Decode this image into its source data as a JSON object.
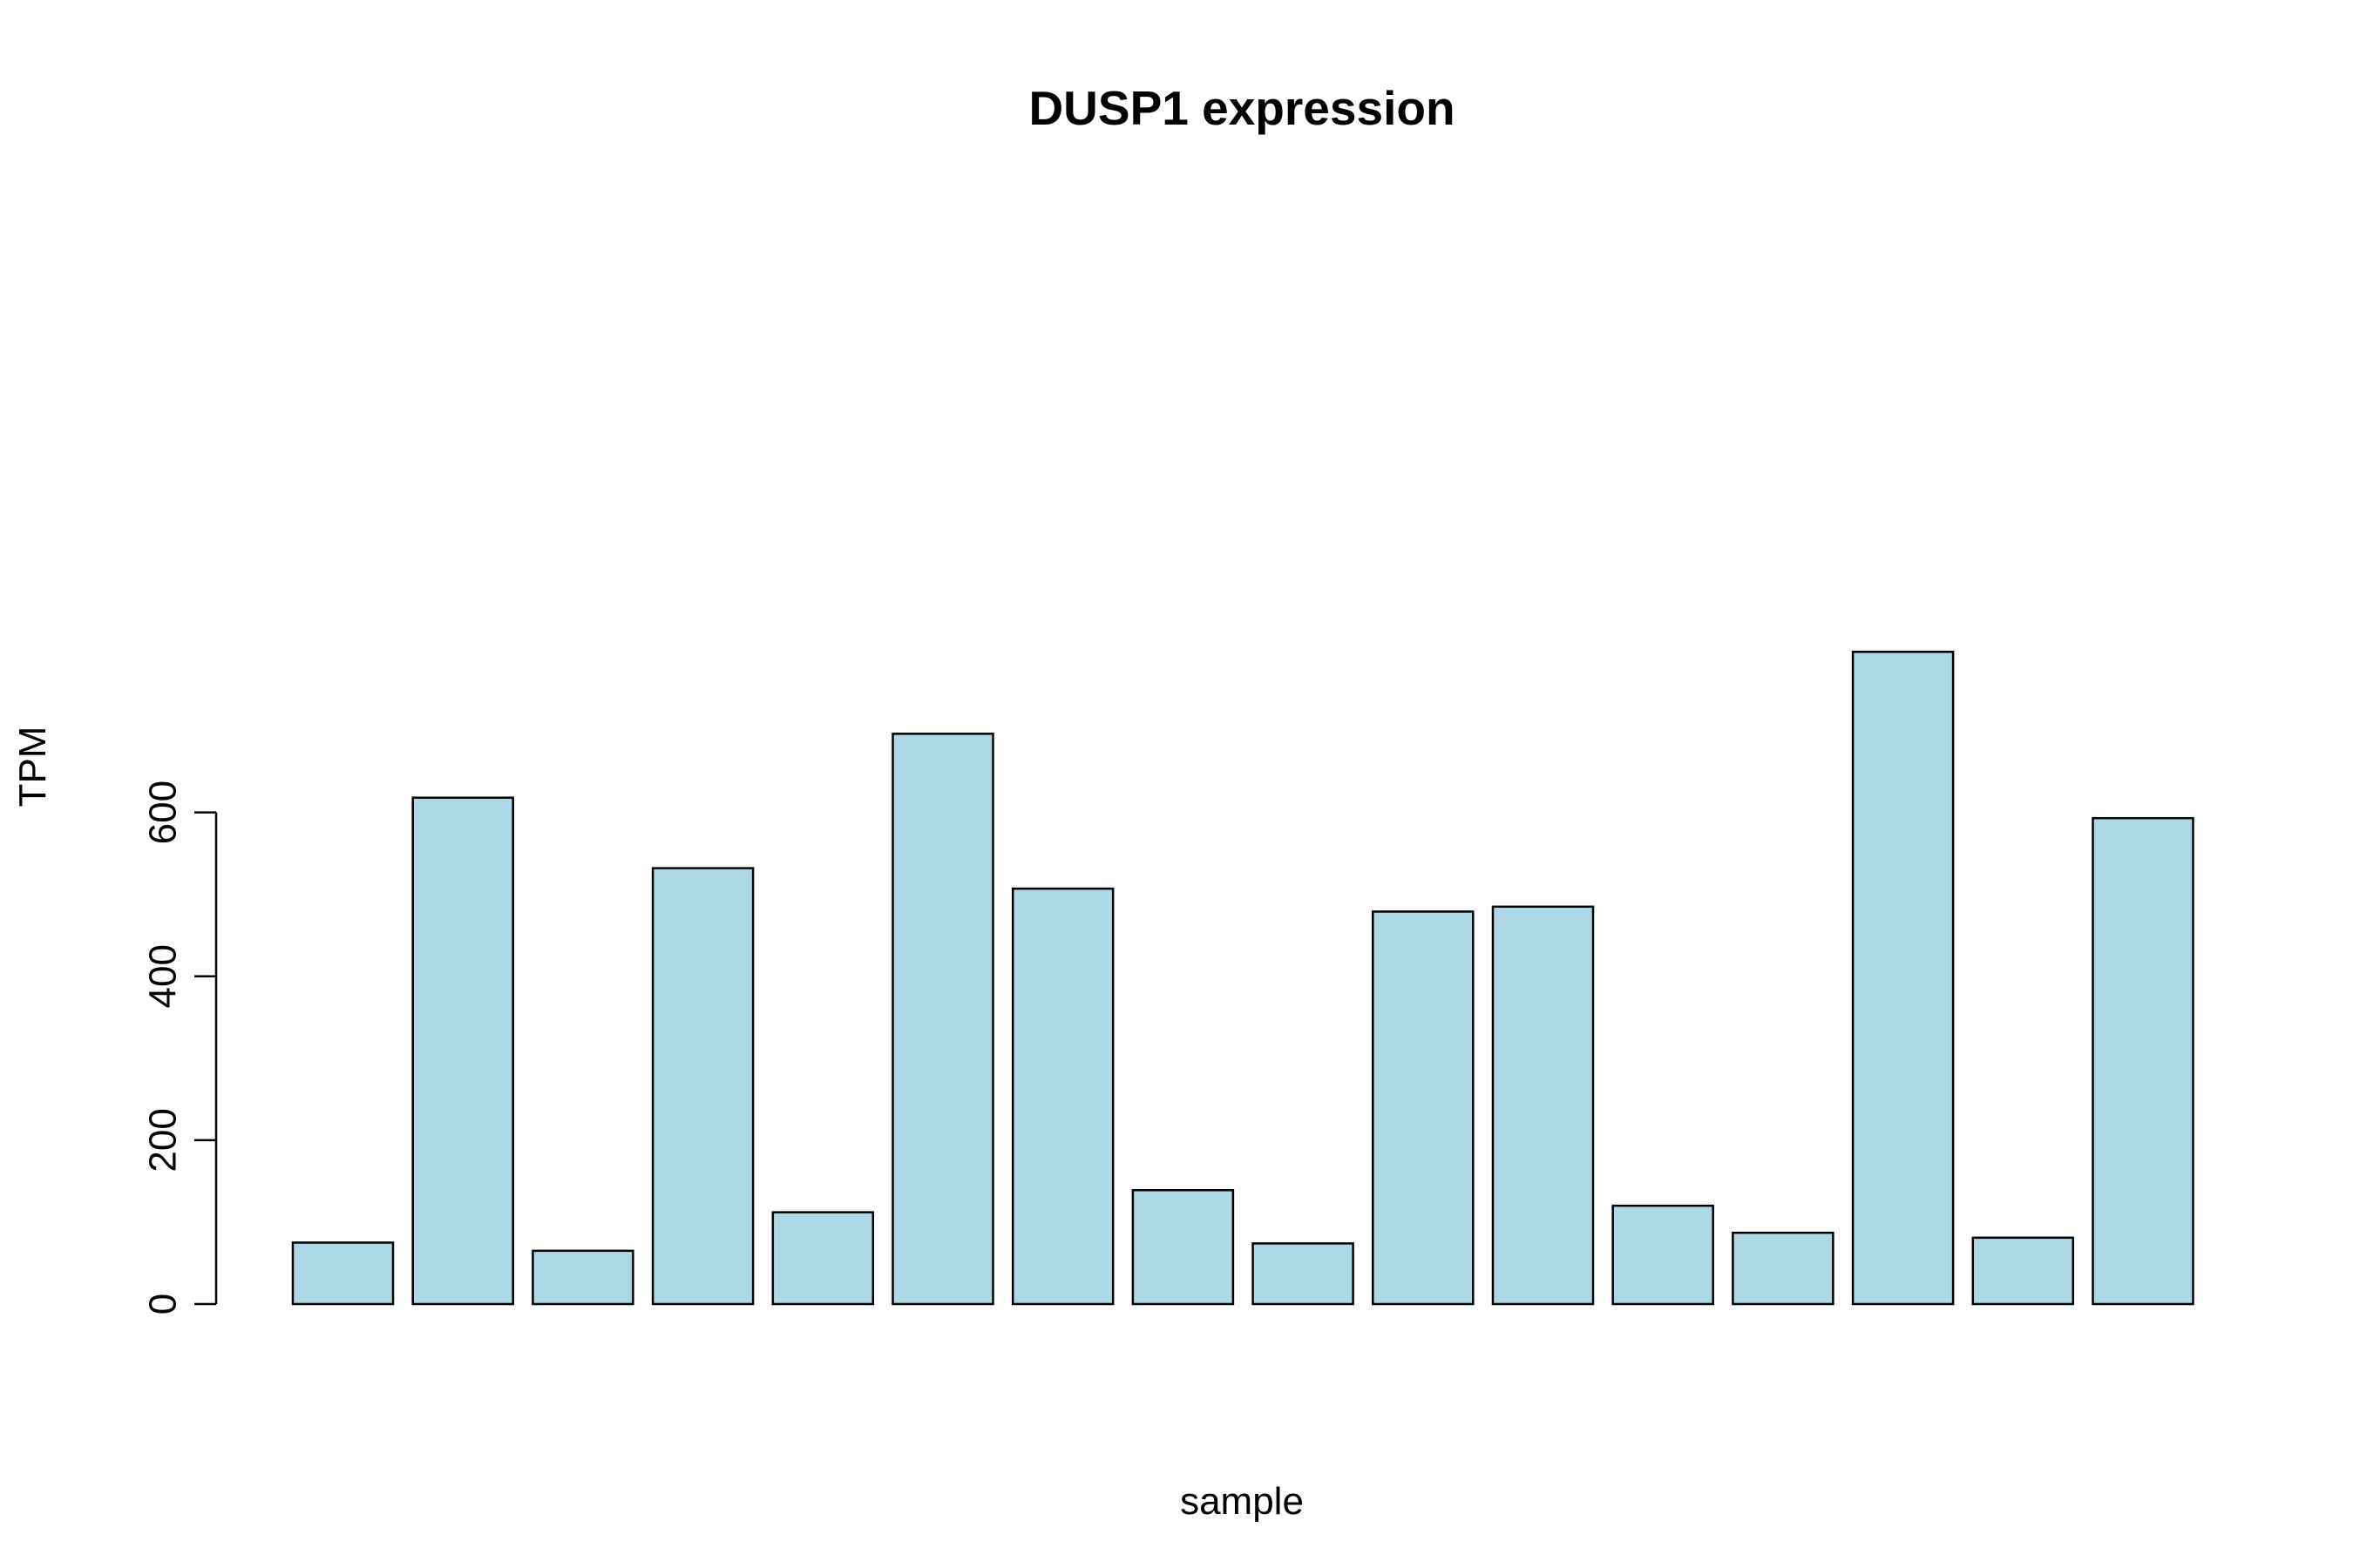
{
  "chart_data": {
    "type": "bar",
    "title": "DUSP1 expression",
    "xlabel": "sample",
    "ylabel": "TPM",
    "values": [
      75,
      618,
      65,
      532,
      112,
      696,
      507,
      139,
      74,
      479,
      485,
      120,
      87,
      796,
      81,
      593
    ],
    "yticks": [
      0,
      200,
      400,
      600
    ],
    "ylim": [
      0,
      796
    ],
    "bar_color": "#add8e6",
    "border_color": "#000000",
    "grid": false,
    "legend": "none"
  }
}
